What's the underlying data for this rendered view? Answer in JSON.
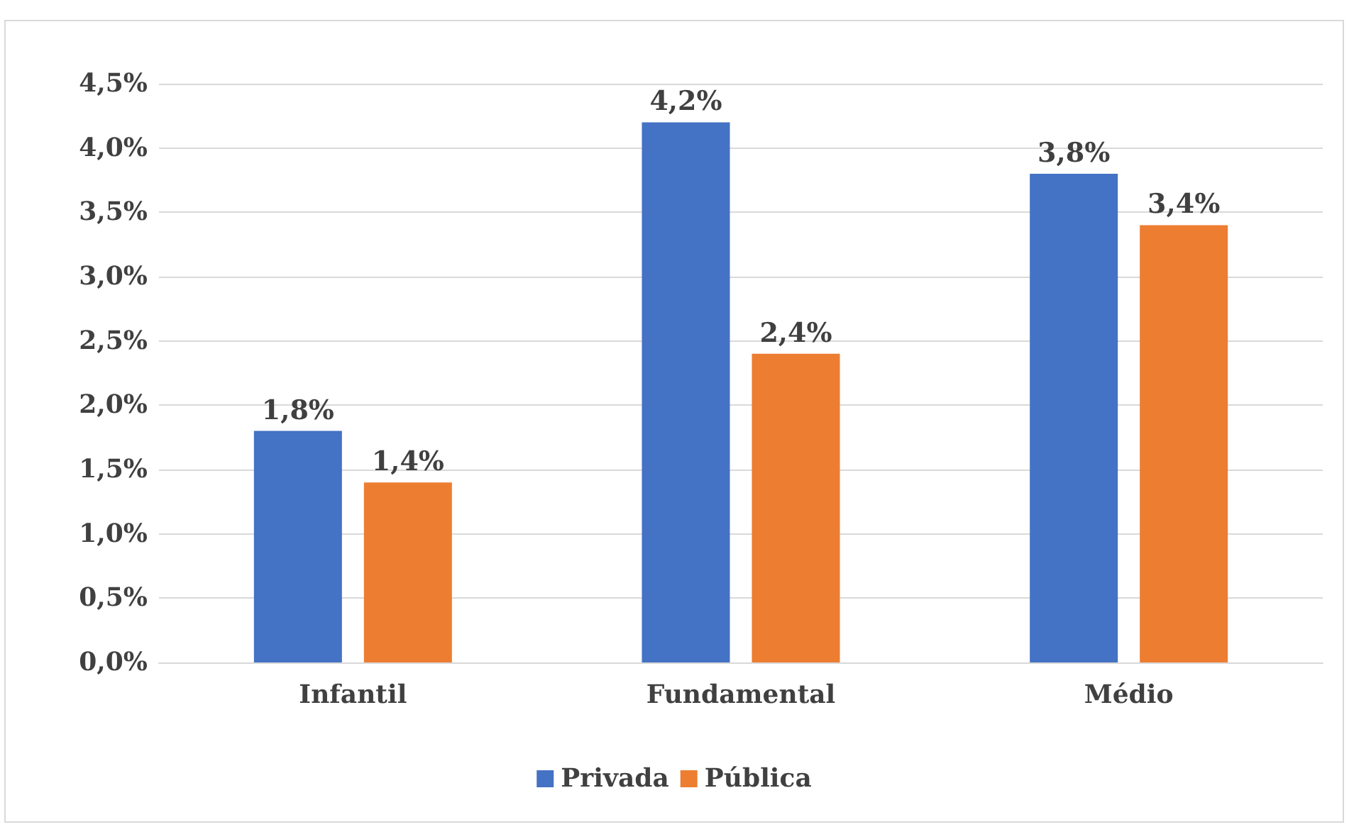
{
  "chart_data": {
    "type": "bar",
    "categories": [
      "Infantil",
      "Fundamental",
      "Médio"
    ],
    "series": [
      {
        "name": "Privada",
        "color": "#4472c4",
        "values": [
          1.8,
          4.2,
          3.8
        ],
        "value_labels": [
          "1,8%",
          "4,2%",
          "3,8%"
        ]
      },
      {
        "name": "Pública",
        "color": "#ed7d31",
        "values": [
          1.4,
          2.4,
          3.4
        ],
        "value_labels": [
          "1,4%",
          "2,4%",
          "3,4%"
        ]
      }
    ],
    "ylim": [
      0,
      4.5
    ],
    "yticks": [
      {
        "value": 0,
        "label": "0,0%"
      },
      {
        "value": 0.5,
        "label": "0,5%"
      },
      {
        "value": 1,
        "label": "1,0%"
      },
      {
        "value": 1.5,
        "label": "1,5%"
      },
      {
        "value": 2,
        "label": "2,0%"
      },
      {
        "value": 2.5,
        "label": "2,5%"
      },
      {
        "value": 3,
        "label": "3,0%"
      },
      {
        "value": 3.5,
        "label": "3,5%"
      },
      {
        "value": 4,
        "label": "4,0%"
      },
      {
        "value": 4.5,
        "label": "4,5%"
      }
    ],
    "grid": "y",
    "legend": "bottom"
  }
}
